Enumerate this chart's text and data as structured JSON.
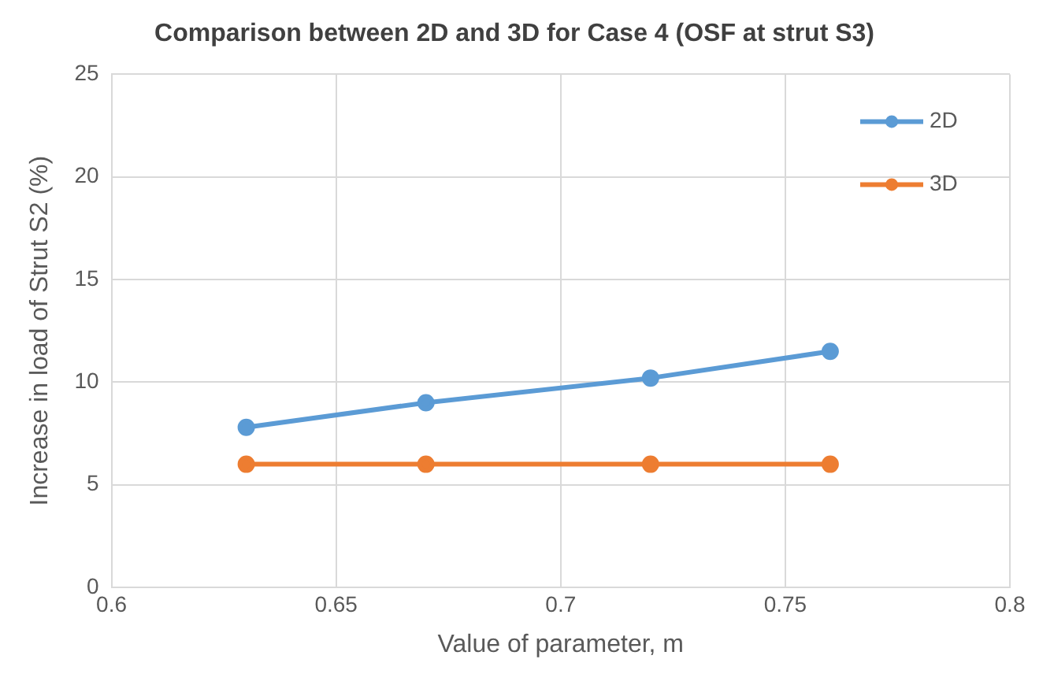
{
  "chart_data": {
    "type": "line",
    "title": "Comparison between 2D and 3D for Case 4 (OSF at strut S3)",
    "xlabel": "Value of parameter, m",
    "ylabel": "Increase in load of Strut S2 (%)",
    "x": [
      0.63,
      0.67,
      0.72,
      0.76
    ],
    "series": [
      {
        "name": "2D",
        "color": "#5b9bd5",
        "values": [
          7.8,
          9.0,
          10.2,
          11.5
        ]
      },
      {
        "name": "3D",
        "color": "#ed7d31",
        "values": [
          6.0,
          6.0,
          6.0,
          6.0
        ]
      }
    ],
    "xlim": [
      0.6,
      0.8
    ],
    "xticks": [
      0.6,
      0.65,
      0.7,
      0.75,
      0.8
    ],
    "ylim": [
      0,
      25
    ],
    "yticks": [
      0,
      5,
      10,
      15,
      20,
      25
    ],
    "grid": true,
    "legend": "top right",
    "marker": "circle",
    "line_style": "solid"
  }
}
